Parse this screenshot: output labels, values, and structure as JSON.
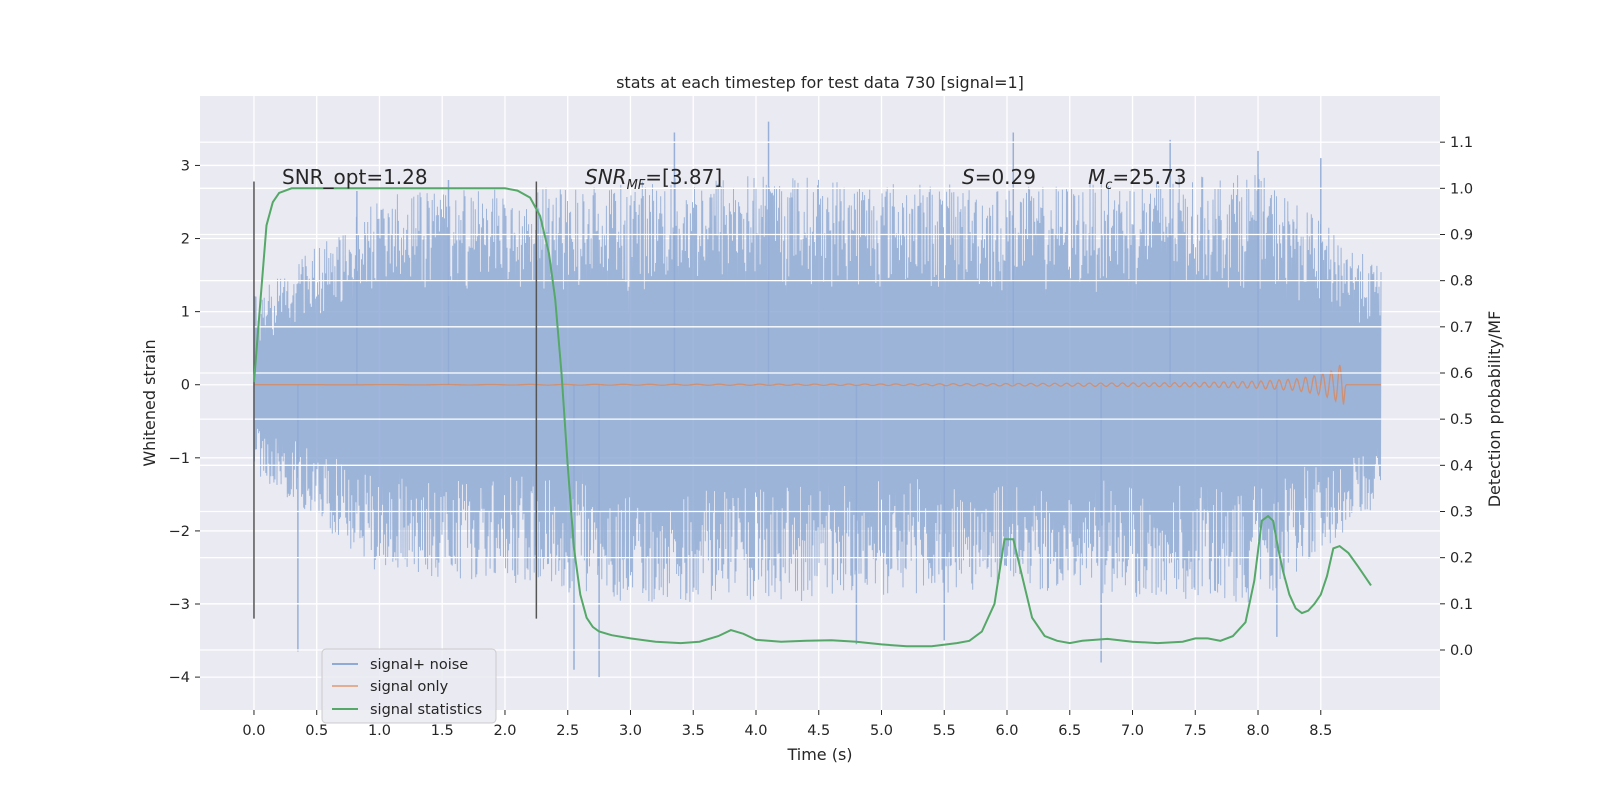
{
  "chart_data": {
    "type": "line",
    "title": "stats at each timestep for test data 730 [signal=1]",
    "xlabel": "Time (s)",
    "ylabel_left": "Whitened strain",
    "ylabel_right": "Detection probability/MF",
    "xlim": [
      -0.43,
      9.45
    ],
    "ylim_left": [
      -4.45,
      3.95
    ],
    "ylim_right": [
      -0.13,
      1.2
    ],
    "x_ticks": [
      "0.0",
      "0.5",
      "1.0",
      "1.5",
      "2.0",
      "2.5",
      "3.0",
      "3.5",
      "4.0",
      "4.5",
      "5.0",
      "5.5",
      "6.0",
      "6.5",
      "7.0",
      "7.5",
      "8.0",
      "8.5"
    ],
    "x_tick_values": [
      0,
      0.5,
      1,
      1.5,
      2,
      2.5,
      3,
      3.5,
      4,
      4.5,
      5,
      5.5,
      6,
      6.5,
      7,
      7.5,
      8,
      8.5
    ],
    "y_left_ticks": [
      "−4",
      "−3",
      "−2",
      "−1",
      "0",
      "1",
      "2",
      "3"
    ],
    "y_left_tick_values": [
      -4,
      -3,
      -2,
      -1,
      0,
      1,
      2,
      3
    ],
    "y_right_ticks": [
      "0.0",
      "0.1",
      "0.2",
      "0.3",
      "0.4",
      "0.5",
      "0.6",
      "0.7",
      "0.8",
      "0.9",
      "1.0",
      "1.1"
    ],
    "y_right_tick_values": [
      0,
      0.1,
      0.2,
      0.3,
      0.4,
      0.5,
      0.6,
      0.7,
      0.8,
      0.9,
      1.0,
      1.1
    ],
    "grid": true,
    "legend_position": "lower-left",
    "annotations": {
      "snr_opt": "SNR_opt=1.28",
      "snr_mf_base": "SNR",
      "snr_mf_sub": "MF",
      "snr_mf_value": "=[3.87]",
      "s_base": "S",
      "s_value": "=0.29",
      "mc_base": "M",
      "mc_sub": "c",
      "mc_value": "=25.73"
    },
    "vlines": [
      {
        "x": 0.0,
        "ymin": -3.2,
        "ymax": 2.78
      },
      {
        "x": 2.25,
        "ymin": -3.2,
        "ymax": 2.78
      }
    ],
    "series": [
      {
        "name": "signal+ noise",
        "axis": "left",
        "color": "#8faad5",
        "x_range": [
          0.0,
          8.98
        ],
        "envelope": {
          "x": [
            0.0,
            1.0,
            2.0,
            3.0,
            4.0,
            5.0,
            6.0,
            7.0,
            8.0,
            8.98
          ],
          "upper": [
            1.2,
            2.6,
            2.7,
            2.8,
            2.9,
            2.8,
            2.7,
            2.8,
            2.9,
            1.6
          ],
          "lower": [
            -1.2,
            -2.6,
            -2.7,
            -3.0,
            -3.0,
            -2.9,
            -2.8,
            -2.9,
            -3.0,
            -1.6
          ]
        },
        "extreme_spikes": [
          {
            "x": 0.35,
            "y": -3.65
          },
          {
            "x": 0.82,
            "y": 2.65
          },
          {
            "x": 1.55,
            "y": 2.8
          },
          {
            "x": 2.55,
            "y": -3.9
          },
          {
            "x": 2.75,
            "y": -4.0
          },
          {
            "x": 3.35,
            "y": 3.45
          },
          {
            "x": 4.1,
            "y": 3.6
          },
          {
            "x": 4.8,
            "y": -3.55
          },
          {
            "x": 5.5,
            "y": -3.5
          },
          {
            "x": 6.05,
            "y": 3.45
          },
          {
            "x": 6.75,
            "y": -3.8
          },
          {
            "x": 7.3,
            "y": 3.35
          },
          {
            "x": 8.0,
            "y": 3.2
          },
          {
            "x": 8.15,
            "y": -3.45
          },
          {
            "x": 8.5,
            "y": 3.1
          }
        ]
      },
      {
        "name": "signal only",
        "axis": "left",
        "color": "#dd8452",
        "x": [
          0.0,
          5.0,
          6.5,
          7.5,
          8.0,
          8.3,
          8.5,
          8.6,
          8.65,
          8.68,
          8.7
        ],
        "amplitude": [
          0.0,
          0.01,
          0.02,
          0.03,
          0.05,
          0.08,
          0.14,
          0.2,
          0.27,
          0.3,
          0.0
        ]
      },
      {
        "name": "signal statistics",
        "axis": "right",
        "color": "#55a868",
        "x": [
          0.0,
          0.05,
          0.1,
          0.15,
          0.2,
          0.3,
          0.5,
          0.8,
          1.0,
          1.5,
          2.0,
          2.1,
          2.2,
          2.28,
          2.35,
          2.4,
          2.45,
          2.5,
          2.55,
          2.6,
          2.65,
          2.7,
          2.75,
          2.85,
          3.0,
          3.2,
          3.4,
          3.55,
          3.7,
          3.8,
          3.9,
          4.0,
          4.2,
          4.4,
          4.6,
          4.8,
          5.0,
          5.2,
          5.4,
          5.6,
          5.7,
          5.8,
          5.9,
          5.98,
          6.05,
          6.12,
          6.2,
          6.3,
          6.4,
          6.5,
          6.6,
          6.8,
          7.0,
          7.2,
          7.4,
          7.5,
          7.6,
          7.7,
          7.8,
          7.9,
          7.97,
          8.03,
          8.08,
          8.12,
          8.16,
          8.2,
          8.25,
          8.3,
          8.35,
          8.4,
          8.45,
          8.5,
          8.55,
          8.6,
          8.65,
          8.72,
          8.8,
          8.9
        ],
        "values": [
          0.58,
          0.75,
          0.92,
          0.97,
          0.99,
          1.0,
          1.0,
          1.0,
          1.0,
          1.0,
          1.0,
          0.995,
          0.98,
          0.94,
          0.86,
          0.76,
          0.6,
          0.4,
          0.22,
          0.12,
          0.07,
          0.05,
          0.04,
          0.032,
          0.025,
          0.018,
          0.015,
          0.018,
          0.03,
          0.043,
          0.035,
          0.022,
          0.018,
          0.02,
          0.021,
          0.018,
          0.012,
          0.008,
          0.008,
          0.015,
          0.02,
          0.04,
          0.1,
          0.24,
          0.24,
          0.16,
          0.07,
          0.03,
          0.02,
          0.015,
          0.02,
          0.024,
          0.018,
          0.015,
          0.018,
          0.025,
          0.025,
          0.02,
          0.03,
          0.06,
          0.15,
          0.28,
          0.29,
          0.28,
          0.22,
          0.17,
          0.12,
          0.09,
          0.08,
          0.085,
          0.1,
          0.12,
          0.16,
          0.22,
          0.225,
          0.21,
          0.18,
          0.14
        ]
      }
    ]
  }
}
